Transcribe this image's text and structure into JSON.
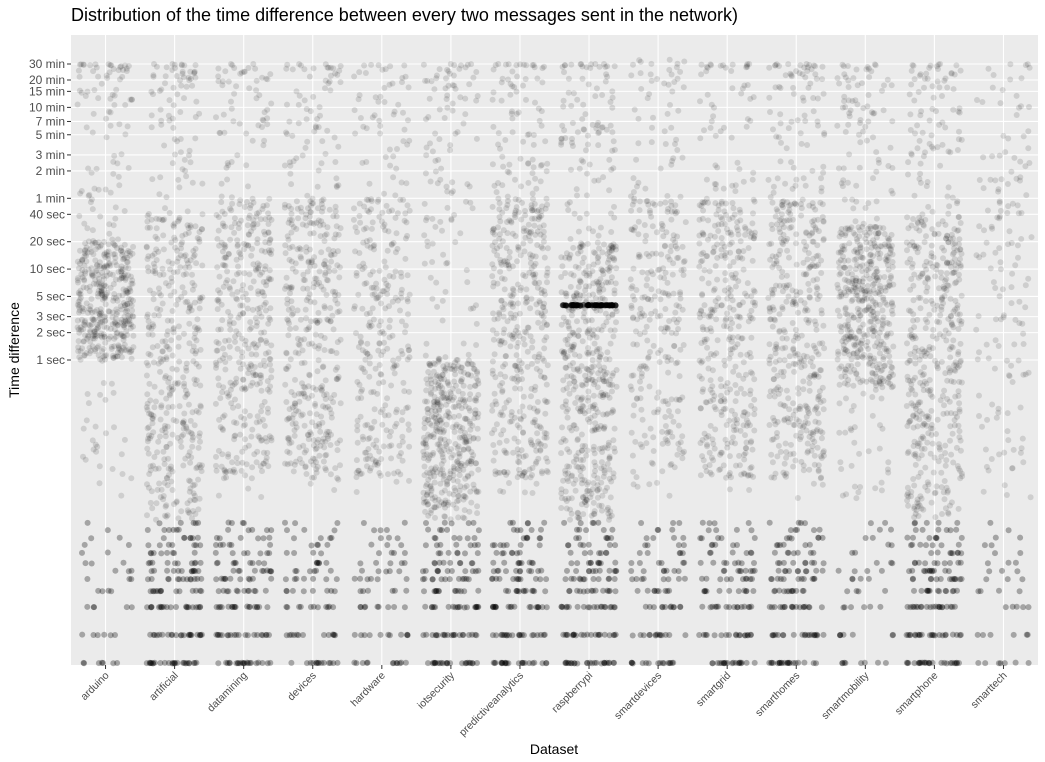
{
  "chart_data": {
    "type": "scatter",
    "subtype": "jitter-strip",
    "title": "Distribution of the time difference between every two messages sent in the network)",
    "xlabel": "Dataset",
    "ylabel": "Time difference",
    "y_scale": "log",
    "y_unit": "seconds",
    "y_ticks": [
      {
        "value": 1,
        "label": "1 sec"
      },
      {
        "value": 2,
        "label": "2 sec"
      },
      {
        "value": 3,
        "label": "3 sec"
      },
      {
        "value": 5,
        "label": "5 sec"
      },
      {
        "value": 10,
        "label": "10 sec"
      },
      {
        "value": 20,
        "label": "20 sec"
      },
      {
        "value": 40,
        "label": "40 sec"
      },
      {
        "value": 60,
        "label": "1 min"
      },
      {
        "value": 120,
        "label": "2 min"
      },
      {
        "value": 180,
        "label": "3 min"
      },
      {
        "value": 300,
        "label": "5 min"
      },
      {
        "value": 420,
        "label": "7 min"
      },
      {
        "value": 600,
        "label": "10 min"
      },
      {
        "value": 900,
        "label": "15 min"
      },
      {
        "value": 1200,
        "label": "20 min"
      },
      {
        "value": 1800,
        "label": "30 min"
      }
    ],
    "ylim": [
      0.001,
      3600
    ],
    "grid": true,
    "categories": [
      "arduino",
      "artificial",
      "datamining",
      "devices",
      "hardware",
      "iotsecurity",
      "predictiveanalytics",
      "raspberrypi",
      "smartdevices",
      "smartgrid",
      "smarthomes",
      "smartmobility",
      "smartphone",
      "smarttech"
    ],
    "point_color": "#000000",
    "point_opacity": 0.12,
    "panel_background": "#ebebeb",
    "gridline_color": "#ffffff",
    "series": [
      {
        "category": "arduino",
        "density": 0.85,
        "dense_range_sec": [
          1,
          20
        ],
        "max_sec": 1800,
        "low_band_density": 0.25
      },
      {
        "category": "artificial",
        "density": 0.75,
        "dense_range_sec": [
          0.01,
          40
        ],
        "max_sec": 1800,
        "low_band_density": 1.0
      },
      {
        "category": "datamining",
        "density": 0.7,
        "dense_range_sec": [
          0.05,
          60
        ],
        "max_sec": 1800,
        "low_band_density": 0.85
      },
      {
        "category": "devices",
        "density": 0.7,
        "dense_range_sec": [
          0.05,
          60
        ],
        "max_sec": 1800,
        "low_band_density": 0.55
      },
      {
        "category": "hardware",
        "density": 0.5,
        "dense_range_sec": [
          0.05,
          60
        ],
        "max_sec": 1800,
        "low_band_density": 0.45
      },
      {
        "category": "iotsecurity",
        "density": 0.85,
        "dense_range_sec": [
          0.01,
          1
        ],
        "max_sec": 1800,
        "low_band_density": 0.9
      },
      {
        "category": "predictiveanalytics",
        "density": 0.8,
        "dense_range_sec": [
          0.05,
          60
        ],
        "max_sec": 1800,
        "low_band_density": 0.9
      },
      {
        "category": "raspberrypi",
        "density": 1.0,
        "dense_range_sec": [
          0.01,
          20
        ],
        "max_sec": 1800,
        "low_band_density": 0.95
      },
      {
        "category": "smartdevices",
        "density": 0.45,
        "dense_range_sec": [
          0.05,
          60
        ],
        "max_sec": 2000,
        "low_band_density": 0.6
      },
      {
        "category": "smartgrid",
        "density": 0.65,
        "dense_range_sec": [
          0.05,
          60
        ],
        "max_sec": 1800,
        "low_band_density": 0.75
      },
      {
        "category": "smarthomes",
        "density": 0.75,
        "dense_range_sec": [
          0.05,
          60
        ],
        "max_sec": 1800,
        "low_band_density": 0.85
      },
      {
        "category": "smartmobility",
        "density": 0.9,
        "dense_range_sec": [
          0.5,
          30
        ],
        "max_sec": 1800,
        "low_band_density": 0.3
      },
      {
        "category": "smartphone",
        "density": 0.85,
        "dense_range_sec": [
          0.01,
          40
        ],
        "max_sec": 1800,
        "low_band_density": 1.0
      },
      {
        "category": "smarttech",
        "density": 0.15,
        "dense_range_sec": [
          0.05,
          300
        ],
        "max_sec": 1800,
        "low_band_density": 0.25
      }
    ],
    "highlight_band": {
      "category": "raspberrypi",
      "value_sec": 4
    }
  }
}
